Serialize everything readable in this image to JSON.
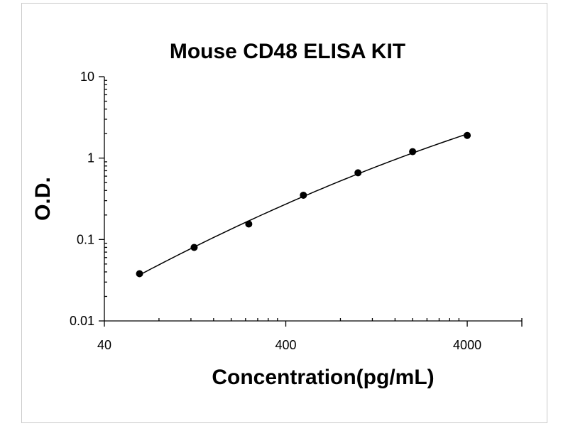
{
  "chart_data": {
    "type": "scatter",
    "title": "Mouse CD48 ELISA KIT",
    "xlabel": "Concentration(pg/mL)",
    "ylabel": "O.D.",
    "x_scale": "log",
    "y_scale": "log",
    "xlim": [
      40,
      8000
    ],
    "ylim": [
      0.01,
      10
    ],
    "x_ticks": [
      {
        "value": 40,
        "label": "40"
      },
      {
        "value": 400,
        "label": "400"
      },
      {
        "value": 4000,
        "label": "4000"
      }
    ],
    "y_ticks": [
      {
        "value": 10,
        "label": "10"
      },
      {
        "value": 1,
        "label": "1"
      },
      {
        "value": 0.1,
        "label": "0.1"
      },
      {
        "value": 0.01,
        "label": "0.01"
      }
    ],
    "grid": false,
    "legend": "none",
    "series": [
      {
        "x": [
          62.5,
          125,
          250,
          500,
          1000,
          2000,
          4000
        ],
        "y": [
          0.038,
          0.08,
          0.155,
          0.35,
          0.66,
          1.2,
          1.9
        ],
        "fit_curve": true
      }
    ]
  }
}
